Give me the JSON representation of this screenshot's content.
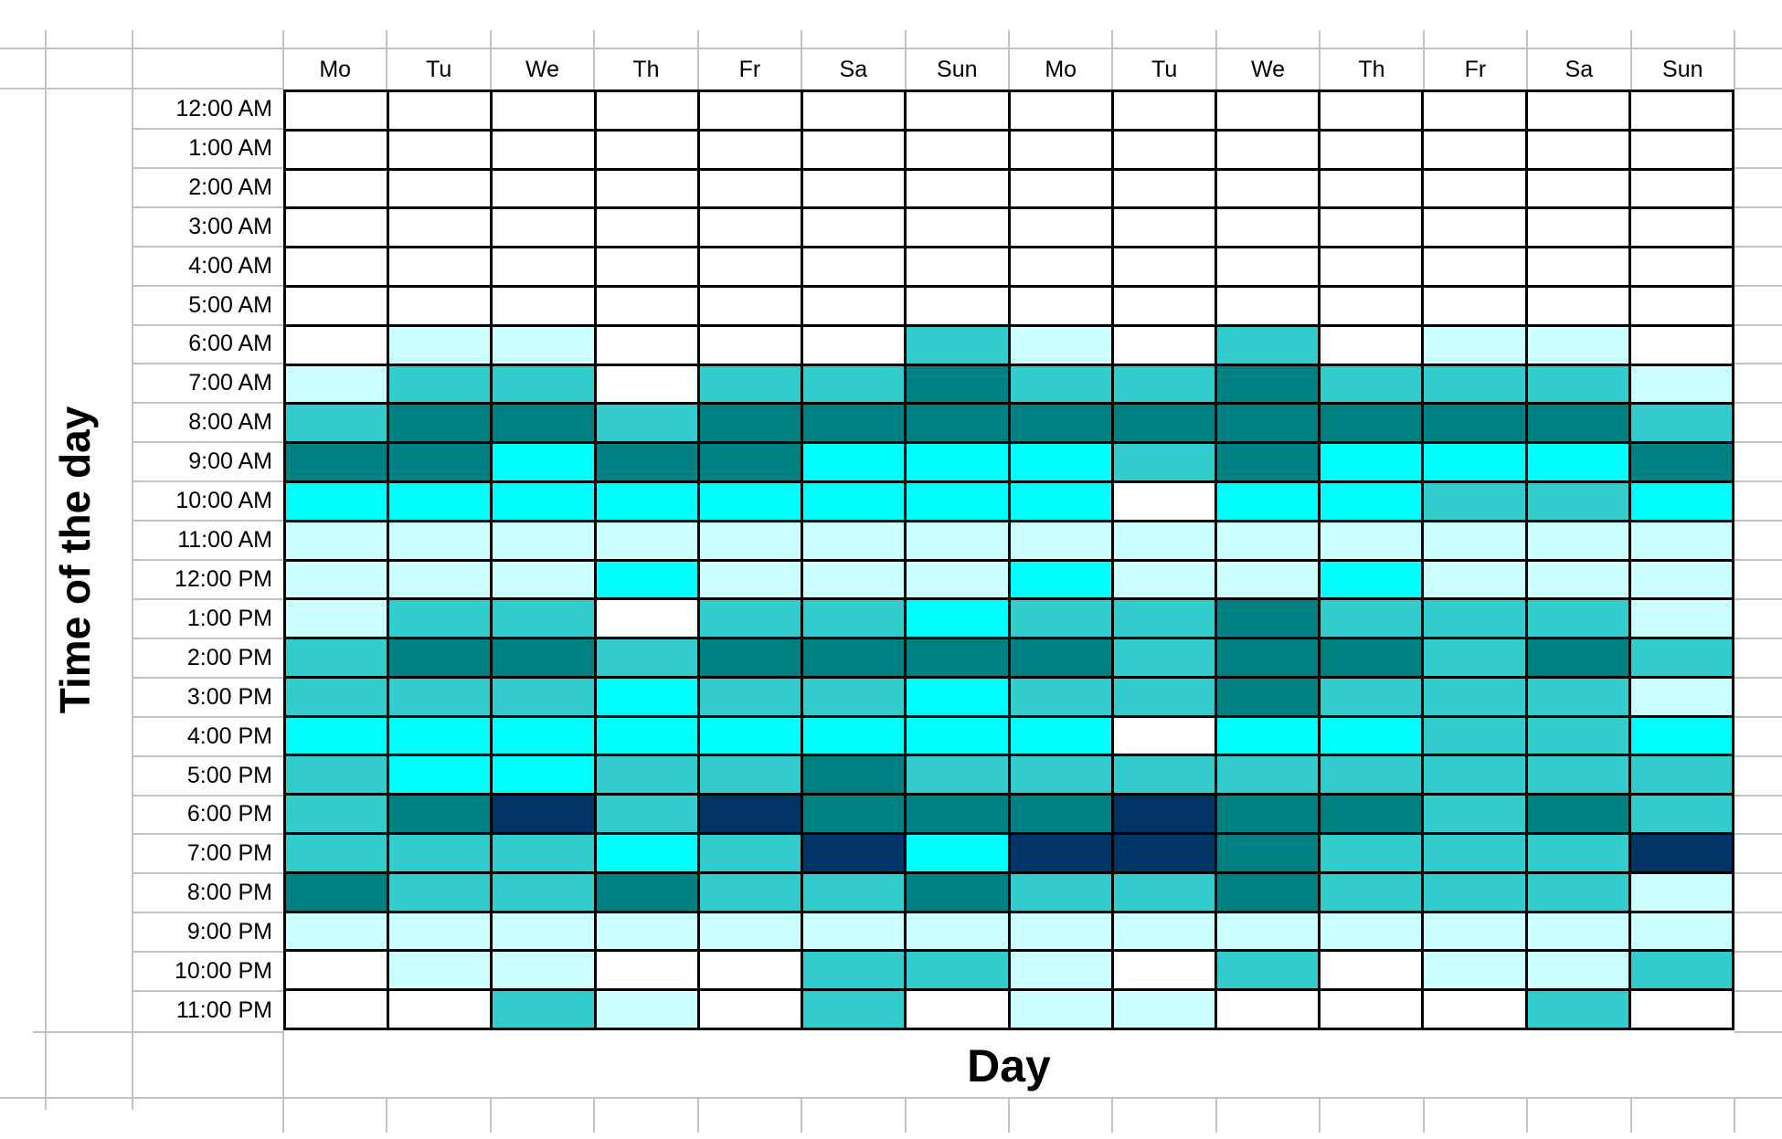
{
  "chart_data": {
    "type": "heatmap",
    "title": "",
    "xlabel": "Day",
    "ylabel": "Time of the day",
    "x_categories": [
      "Mo",
      "Tu",
      "We",
      "Th",
      "Fr",
      "Sa",
      "Sun",
      "Mo",
      "Tu",
      "We",
      "Th",
      "Fr",
      "Sa",
      "Sun"
    ],
    "y_categories": [
      "12:00 AM",
      "1:00 AM",
      "2:00 AM",
      "3:00 AM",
      "4:00 AM",
      "5:00 AM",
      "6:00 AM",
      "7:00 AM",
      "8:00 AM",
      "9:00 AM",
      "10:00 AM",
      "11:00 AM",
      "12:00 PM",
      "1:00 PM",
      "2:00 PM",
      "3:00 PM",
      "4:00 PM",
      "5:00 PM",
      "6:00 PM",
      "7:00 PM",
      "8:00 PM",
      "9:00 PM",
      "10:00 PM",
      "11:00 PM"
    ],
    "values": [
      [
        0,
        0,
        0,
        0,
        0,
        0,
        0,
        0,
        0,
        0,
        0,
        0,
        0,
        0
      ],
      [
        0,
        0,
        0,
        0,
        0,
        0,
        0,
        0,
        0,
        0,
        0,
        0,
        0,
        0
      ],
      [
        0,
        0,
        0,
        0,
        0,
        0,
        0,
        0,
        0,
        0,
        0,
        0,
        0,
        0
      ],
      [
        0,
        0,
        0,
        0,
        0,
        0,
        0,
        0,
        0,
        0,
        0,
        0,
        0,
        0
      ],
      [
        0,
        0,
        0,
        0,
        0,
        0,
        0,
        0,
        0,
        0,
        0,
        0,
        0,
        0
      ],
      [
        0,
        0,
        0,
        0,
        0,
        0,
        0,
        0,
        0,
        0,
        0,
        0,
        0,
        0
      ],
      [
        0,
        1,
        1,
        0,
        0,
        0,
        3,
        1,
        0,
        3,
        0,
        1,
        1,
        0
      ],
      [
        1,
        3,
        3,
        0,
        3,
        3,
        4,
        3,
        3,
        4,
        3,
        3,
        3,
        1
      ],
      [
        3,
        4,
        4,
        3,
        4,
        4,
        4,
        4,
        4,
        4,
        4,
        4,
        4,
        3
      ],
      [
        4,
        4,
        2,
        4,
        4,
        2,
        2,
        2,
        3,
        4,
        2,
        2,
        2,
        4
      ],
      [
        2,
        2,
        2,
        2,
        2,
        2,
        2,
        2,
        0,
        2,
        2,
        3,
        3,
        2
      ],
      [
        1,
        1,
        1,
        1,
        1,
        1,
        1,
        1,
        1,
        1,
        1,
        1,
        1,
        1
      ],
      [
        1,
        1,
        1,
        2,
        1,
        1,
        1,
        2,
        1,
        1,
        2,
        1,
        1,
        1
      ],
      [
        1,
        3,
        3,
        0,
        3,
        3,
        2,
        3,
        3,
        4,
        3,
        3,
        3,
        1
      ],
      [
        3,
        4,
        4,
        3,
        4,
        4,
        4,
        4,
        3,
        4,
        4,
        3,
        4,
        3
      ],
      [
        3,
        3,
        3,
        2,
        3,
        3,
        2,
        3,
        3,
        4,
        3,
        3,
        3,
        1
      ],
      [
        2,
        2,
        2,
        2,
        2,
        2,
        2,
        2,
        0,
        2,
        2,
        3,
        3,
        2
      ],
      [
        3,
        2,
        2,
        3,
        3,
        4,
        3,
        3,
        3,
        3,
        3,
        3,
        3,
        3
      ],
      [
        3,
        4,
        5,
        3,
        5,
        4,
        4,
        4,
        5,
        4,
        4,
        3,
        4,
        3
      ],
      [
        3,
        3,
        3,
        2,
        3,
        5,
        2,
        5,
        5,
        4,
        3,
        3,
        3,
        5
      ],
      [
        4,
        3,
        3,
        4,
        3,
        3,
        4,
        3,
        3,
        4,
        3,
        3,
        3,
        1
      ],
      [
        1,
        1,
        1,
        1,
        1,
        1,
        1,
        1,
        1,
        1,
        1,
        1,
        1,
        1
      ],
      [
        0,
        1,
        1,
        0,
        0,
        3,
        3,
        1,
        0,
        3,
        0,
        1,
        1,
        3
      ],
      [
        0,
        0,
        3,
        1,
        0,
        3,
        0,
        1,
        1,
        0,
        0,
        0,
        3,
        0
      ]
    ],
    "value_scale": {
      "description": "Discrete fill-intensity levels read from cell colors; no numeric labels are shown in the chart",
      "levels": [
        0,
        1,
        2,
        3,
        4,
        5
      ],
      "palette": {
        "0": "#FFFFFF",
        "1": "#CCFFFF",
        "2": "#00FFFF",
        "3": "#33CCCC",
        "4": "#008080",
        "5": "#003366"
      }
    },
    "grid_on": true,
    "legend_position": "none"
  },
  "style": {
    "cell_border_color": "#000000",
    "sheet_gridline_color": "#C3C3C3",
    "text_color": "#000000"
  }
}
